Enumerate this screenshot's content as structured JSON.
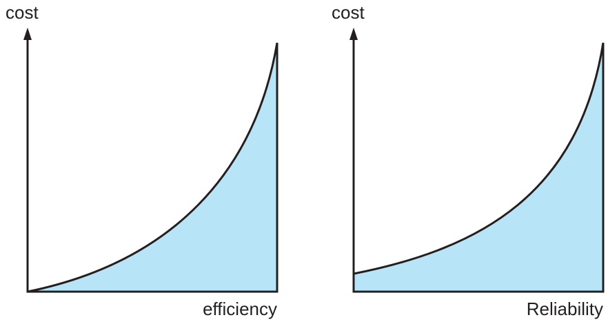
{
  "panels": [
    {
      "y_label": "cost",
      "x_label": "efficiency"
    },
    {
      "y_label": "cost",
      "x_label": "Reliability"
    }
  ]
}
